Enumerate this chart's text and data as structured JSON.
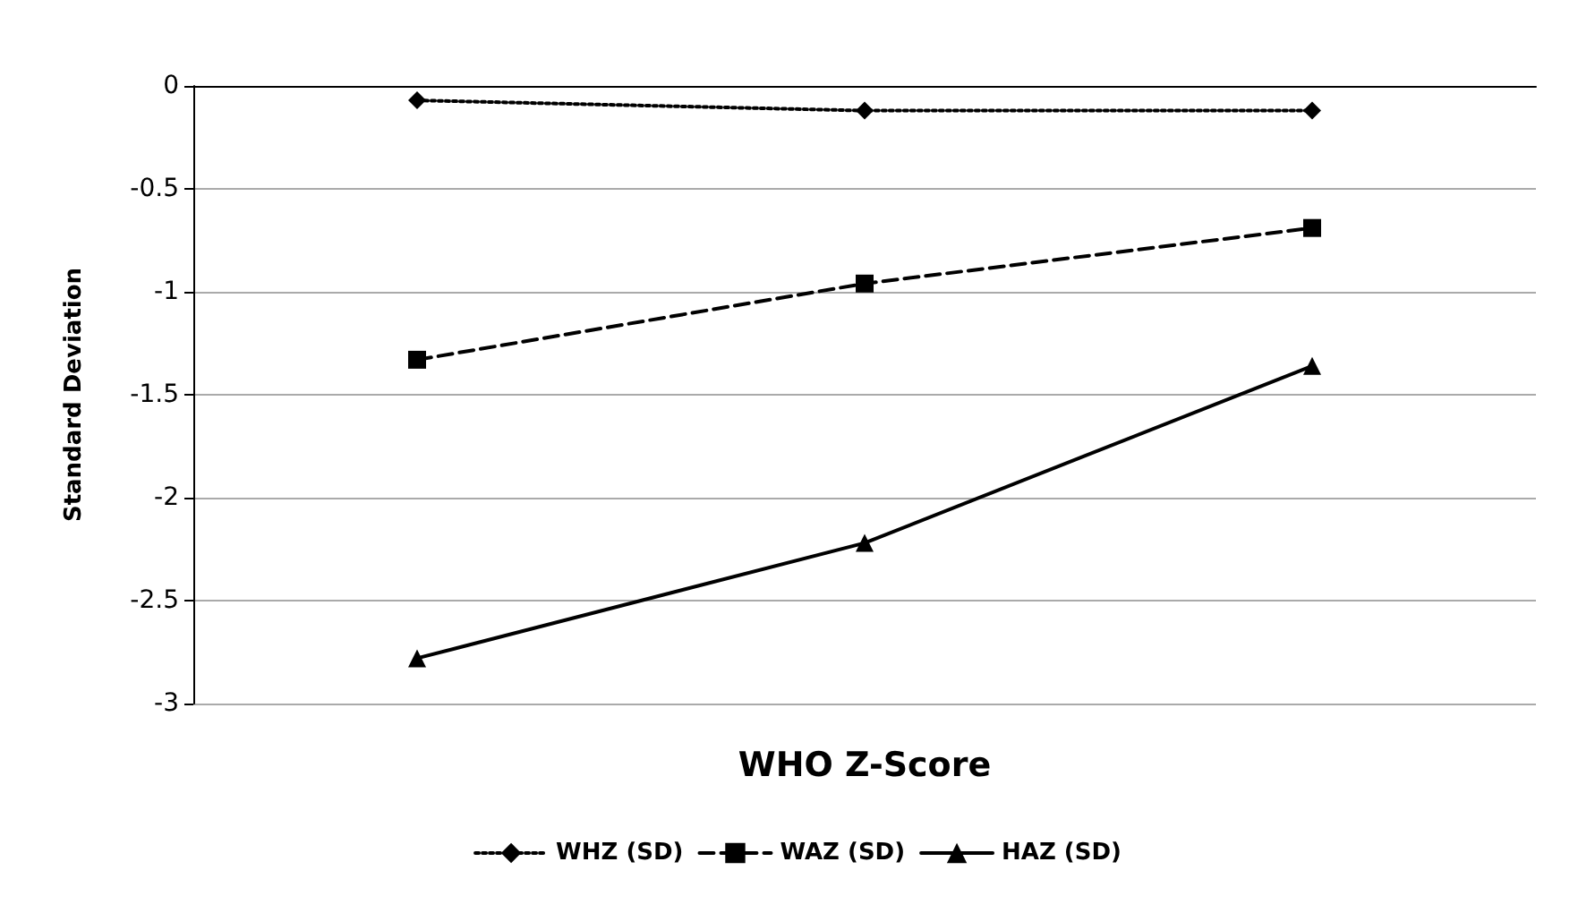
{
  "chart_data": {
    "type": "line",
    "xlabel": "WHO Z-Score",
    "ylabel": "Standard Deviation",
    "categories": [
      null,
      null,
      null
    ],
    "series": [
      {
        "name": "WHZ (SD)",
        "color": "#000000",
        "marker": "diamond",
        "line_style": "dotted",
        "values": [
          -0.07,
          -0.12,
          -0.12
        ]
      },
      {
        "name": "WAZ (SD)",
        "color": "#000000",
        "marker": "square",
        "line_style": "dashed",
        "values": [
          -1.33,
          -0.96,
          -0.69
        ]
      },
      {
        "name": "HAZ (SD)",
        "color": "#000000",
        "marker": "triangle",
        "line_style": "solid",
        "values": [
          -2.78,
          -2.22,
          -1.36
        ]
      }
    ],
    "ylim": [
      -3,
      0
    ],
    "yticks": [
      -3,
      -2.5,
      -2,
      -1.5,
      -1,
      -0.5,
      0
    ],
    "grid": "y",
    "legend": "bottom"
  }
}
